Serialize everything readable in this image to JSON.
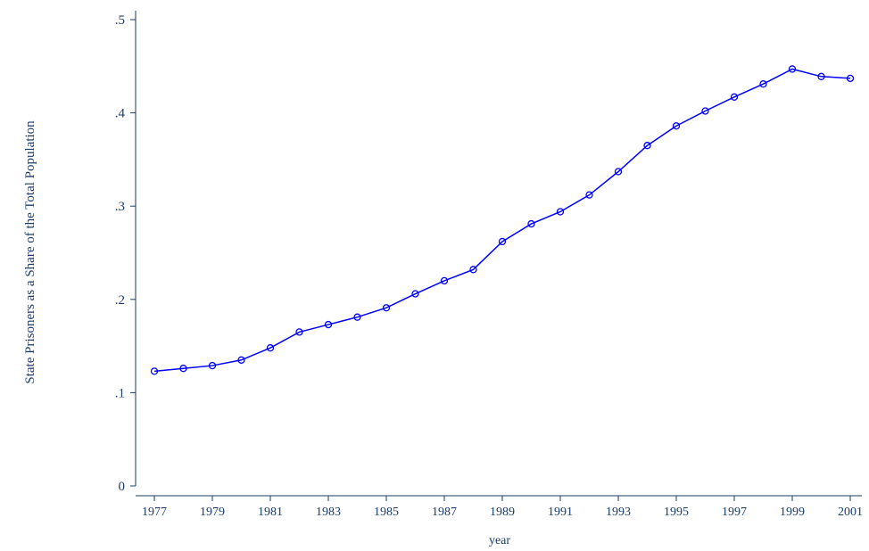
{
  "chart_data": {
    "type": "line",
    "y_label": "State Prisoners as a Share of the Total Population",
    "x_label": "year",
    "x": [
      1977,
      1978,
      1979,
      1980,
      1981,
      1982,
      1983,
      1984,
      1985,
      1986,
      1987,
      1988,
      1989,
      1990,
      1991,
      1992,
      1993,
      1994,
      1995,
      1996,
      1997,
      1998,
      1999,
      2000,
      2001
    ],
    "series": [
      {
        "color": "#0000ff",
        "values": [
          0.123,
          0.126,
          0.129,
          0.135,
          0.148,
          0.165,
          0.173,
          0.181,
          0.191,
          0.206,
          0.22,
          0.232,
          0.262,
          0.281,
          0.294,
          0.312,
          0.337,
          0.365,
          0.386,
          0.402,
          0.417,
          0.431,
          0.447,
          0.439,
          0.437
        ]
      }
    ],
    "xlim": [
      1976.4,
      2001.4
    ],
    "xticks": [
      1977,
      1979,
      1981,
      1983,
      1985,
      1987,
      1989,
      1991,
      1993,
      1995,
      1997,
      1999,
      2001
    ],
    "ylim": [
      0,
      0.5
    ],
    "yticks": [
      0,
      {
        "value": 0.1,
        "label": ".1"
      },
      {
        "value": 0.2,
        "label": ".2"
      },
      {
        "value": 0.3,
        "label": ".3"
      },
      {
        "value": 0.4,
        "label": ".4"
      },
      {
        "value": 0.5,
        "label": ".5"
      }
    ]
  }
}
